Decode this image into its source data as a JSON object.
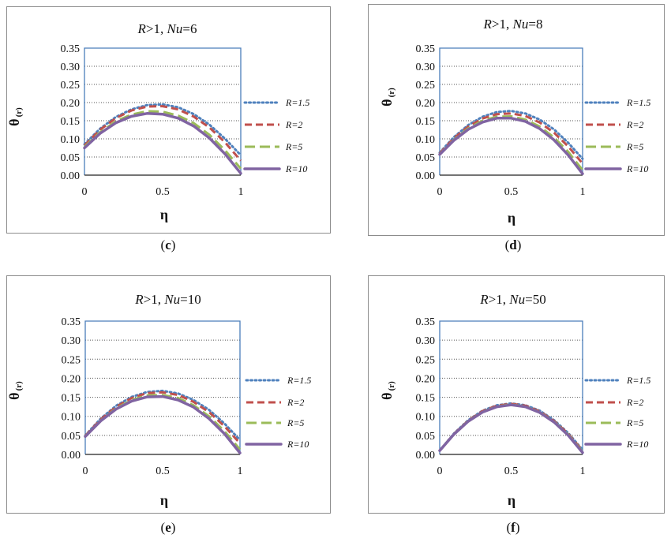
{
  "panels": [
    {
      "caption_letter": "c",
      "title_parts": [
        "R",
        ">1, ",
        "Nu",
        "=6"
      ]
    },
    {
      "caption_letter": "d",
      "title_parts": [
        "R",
        ">1, ",
        "Nu",
        "=8"
      ]
    },
    {
      "caption_letter": "e",
      "title_parts": [
        "R",
        ">1, ",
        "Nu",
        "=10"
      ]
    },
    {
      "caption_letter": "f",
      "title_parts": [
        "R",
        ">1, ",
        "Nu",
        "=50"
      ]
    }
  ],
  "colors": {
    "R=1.5": "#4f81bd",
    "R=2": "#c0504d",
    "R=5": "#9bbb59",
    "R=10": "#8064a2",
    "frame": "#4a7ebb",
    "grid": "#555555"
  },
  "chart_data": [
    {
      "type": "line",
      "title": "R>1, Nu=6",
      "xlabel": "η",
      "ylabel": "θ(r)",
      "xlim": [
        0,
        1
      ],
      "ylim": [
        0,
        0.35
      ],
      "x_ticks": [
        "0",
        "0.5",
        "1"
      ],
      "y_ticks": [
        "0.00",
        "0.05",
        "0.10",
        "0.15",
        "0.20",
        "0.25",
        "0.30",
        "0.35"
      ],
      "grid": "horizontal dotted",
      "legend": "right",
      "x": [
        0,
        0.1,
        0.2,
        0.3,
        0.4,
        0.5,
        0.6,
        0.7,
        0.8,
        0.9,
        1.0
      ],
      "series": [
        {
          "name": "R=1.5",
          "style": "dotted",
          "values": [
            0.085,
            0.128,
            0.16,
            0.181,
            0.193,
            0.195,
            0.187,
            0.168,
            0.139,
            0.1,
            0.055
          ]
        },
        {
          "name": "R=2",
          "style": "dashed",
          "values": [
            0.082,
            0.125,
            0.157,
            0.178,
            0.189,
            0.19,
            0.181,
            0.161,
            0.131,
            0.09,
            0.04
          ]
        },
        {
          "name": "R=5",
          "style": "long-dash",
          "values": [
            0.078,
            0.118,
            0.148,
            0.167,
            0.176,
            0.175,
            0.164,
            0.143,
            0.111,
            0.068,
            0.018
          ]
        },
        {
          "name": "R=10",
          "style": "solid",
          "values": [
            0.075,
            0.115,
            0.144,
            0.162,
            0.17,
            0.168,
            0.157,
            0.135,
            0.102,
            0.058,
            0.005
          ]
        }
      ]
    },
    {
      "type": "line",
      "title": "R>1, Nu=8",
      "xlabel": "η",
      "ylabel": "θ(r)",
      "xlim": [
        0,
        1
      ],
      "ylim": [
        0,
        0.35
      ],
      "x_ticks": [
        "0",
        "0.5",
        "1"
      ],
      "y_ticks": [
        "0.00",
        "0.05",
        "0.10",
        "0.15",
        "0.20",
        "0.25",
        "0.30",
        "0.35"
      ],
      "grid": "horizontal dotted",
      "legend": "right",
      "x": [
        0,
        0.1,
        0.2,
        0.3,
        0.4,
        0.5,
        0.6,
        0.7,
        0.8,
        0.9,
        1.0
      ],
      "series": [
        {
          "name": "R=1.5",
          "style": "dotted",
          "values": [
            0.062,
            0.105,
            0.138,
            0.161,
            0.174,
            0.177,
            0.17,
            0.153,
            0.126,
            0.089,
            0.045
          ]
        },
        {
          "name": "R=2",
          "style": "dashed",
          "values": [
            0.06,
            0.102,
            0.134,
            0.156,
            0.168,
            0.17,
            0.163,
            0.145,
            0.117,
            0.079,
            0.032
          ]
        },
        {
          "name": "R=5",
          "style": "long-dash",
          "values": [
            0.058,
            0.098,
            0.129,
            0.15,
            0.161,
            0.162,
            0.153,
            0.134,
            0.104,
            0.064,
            0.014
          ]
        },
        {
          "name": "R=10",
          "style": "solid",
          "values": [
            0.057,
            0.096,
            0.126,
            0.146,
            0.157,
            0.157,
            0.148,
            0.128,
            0.097,
            0.055,
            0.004
          ]
        }
      ]
    },
    {
      "type": "line",
      "title": "R>1, Nu=10",
      "xlabel": "η",
      "ylabel": "θ(r)",
      "xlim": [
        0,
        1
      ],
      "ylim": [
        0,
        0.35
      ],
      "x_ticks": [
        "0",
        "0.5",
        "1"
      ],
      "y_ticks": [
        "0.00",
        "0.05",
        "0.10",
        "0.15",
        "0.20",
        "0.25",
        "0.30",
        "0.35"
      ],
      "grid": "horizontal dotted",
      "legend": "right",
      "x": [
        0,
        0.1,
        0.2,
        0.3,
        0.4,
        0.5,
        0.6,
        0.7,
        0.8,
        0.9,
        1.0
      ],
      "series": [
        {
          "name": "R=1.5",
          "style": "dotted",
          "values": [
            0.05,
            0.094,
            0.128,
            0.151,
            0.164,
            0.167,
            0.16,
            0.143,
            0.117,
            0.081,
            0.038
          ]
        },
        {
          "name": "R=2",
          "style": "dashed",
          "values": [
            0.049,
            0.092,
            0.125,
            0.148,
            0.161,
            0.163,
            0.156,
            0.138,
            0.111,
            0.074,
            0.029
          ]
        },
        {
          "name": "R=5",
          "style": "long-dash",
          "values": [
            0.048,
            0.089,
            0.121,
            0.143,
            0.155,
            0.156,
            0.148,
            0.129,
            0.1,
            0.061,
            0.013
          ]
        },
        {
          "name": "R=10",
          "style": "solid",
          "values": [
            0.047,
            0.088,
            0.119,
            0.14,
            0.151,
            0.152,
            0.143,
            0.124,
            0.094,
            0.054,
            0.004
          ]
        }
      ]
    },
    {
      "type": "line",
      "title": "R>1, Nu=50",
      "xlabel": "η",
      "ylabel": "θ(r)",
      "xlim": [
        0,
        1
      ],
      "ylim": [
        0,
        0.35
      ],
      "x_ticks": [
        "0",
        "0.5",
        "1"
      ],
      "y_ticks": [
        "0.00",
        "0.05",
        "0.10",
        "0.15",
        "0.20",
        "0.25",
        "0.30",
        "0.35"
      ],
      "grid": "horizontal dotted",
      "legend": "right",
      "x": [
        0,
        0.1,
        0.2,
        0.3,
        0.4,
        0.5,
        0.6,
        0.7,
        0.8,
        0.9,
        1.0
      ],
      "series": [
        {
          "name": "R=1.5",
          "style": "dotted",
          "values": [
            0.01,
            0.055,
            0.09,
            0.115,
            0.129,
            0.134,
            0.129,
            0.115,
            0.09,
            0.056,
            0.012
          ]
        },
        {
          "name": "R=2",
          "style": "dashed",
          "values": [
            0.01,
            0.054,
            0.089,
            0.114,
            0.128,
            0.133,
            0.128,
            0.113,
            0.088,
            0.054,
            0.01
          ]
        },
        {
          "name": "R=5",
          "style": "long-dash",
          "values": [
            0.01,
            0.053,
            0.088,
            0.112,
            0.126,
            0.131,
            0.126,
            0.111,
            0.086,
            0.052,
            0.007
          ]
        },
        {
          "name": "R=10",
          "style": "solid",
          "values": [
            0.01,
            0.053,
            0.087,
            0.111,
            0.125,
            0.13,
            0.125,
            0.11,
            0.085,
            0.05,
            0.005
          ]
        }
      ]
    }
  ]
}
